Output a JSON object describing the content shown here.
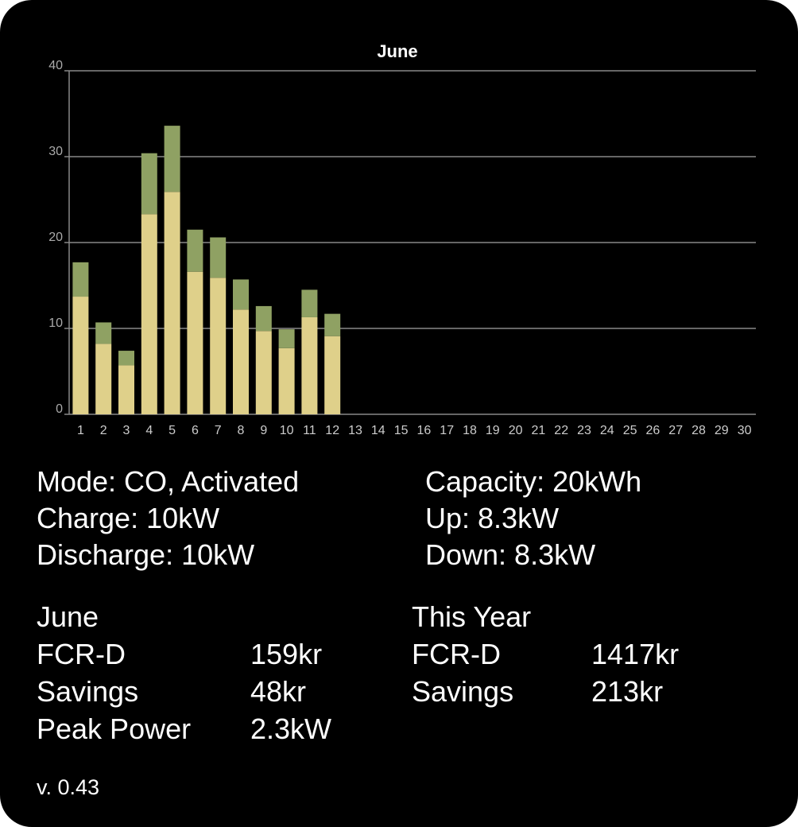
{
  "chart_data": {
    "type": "stacked_bar",
    "title": "June",
    "categories": [
      "1",
      "2",
      "3",
      "4",
      "5",
      "6",
      "7",
      "8",
      "9",
      "10",
      "11",
      "12",
      "13",
      "14",
      "15",
      "16",
      "17",
      "18",
      "19",
      "20",
      "21",
      "22",
      "23",
      "24",
      "25",
      "26",
      "27",
      "28",
      "29",
      "30"
    ],
    "series": [
      {
        "color": "#dfd08a",
        "values": [
          13.7,
          8.2,
          5.7,
          23.3,
          25.9,
          16.6,
          15.9,
          12.2,
          9.7,
          7.7,
          11.3,
          9.1,
          null,
          null,
          null,
          null,
          null,
          null,
          null,
          null,
          null,
          null,
          null,
          null,
          null,
          null,
          null,
          null,
          null,
          null
        ]
      },
      {
        "color": "#8fa163",
        "values": [
          4.0,
          2.5,
          1.7,
          7.1,
          7.7,
          4.9,
          4.7,
          3.5,
          2.9,
          2.2,
          3.2,
          2.6,
          null,
          null,
          null,
          null,
          null,
          null,
          null,
          null,
          null,
          null,
          null,
          null,
          null,
          null,
          null,
          null,
          null,
          null
        ]
      }
    ],
    "ylim": [
      0,
      40
    ],
    "yticks": [
      0,
      10,
      20,
      30,
      40
    ],
    "grid": true
  },
  "status": {
    "left": [
      "Mode: CO, Activated",
      "Charge: 10kW",
      "Discharge: 10kW"
    ],
    "right": [
      "Capacity: 20kWh",
      "Up: 8.3kW",
      "Down: 8.3kW"
    ]
  },
  "stats": {
    "month": {
      "title": "June",
      "rows": [
        [
          "FCR-D",
          "159kr"
        ],
        [
          "Savings",
          "48kr"
        ],
        [
          "Peak Power",
          "2.3kW"
        ]
      ]
    },
    "year": {
      "title": "This Year",
      "rows": [
        [
          "FCR-D",
          "1417kr"
        ],
        [
          "Savings",
          "213kr"
        ]
      ]
    }
  },
  "version": "v. 0.43"
}
